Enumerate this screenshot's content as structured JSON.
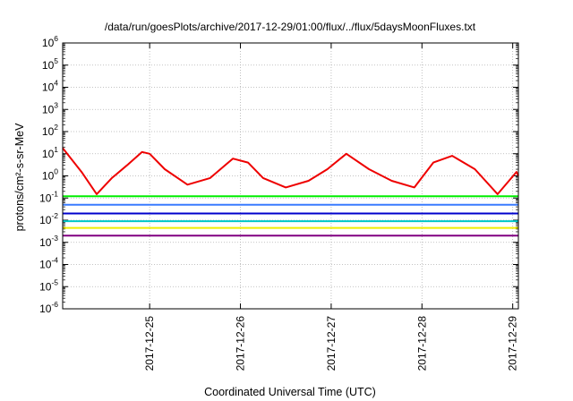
{
  "chart_data": {
    "type": "line",
    "title": "/data/run/goesPlots/archive/2017-12-29/01:00/flux/../flux/5daysMoonFluxes.txt",
    "xlabel": "Coordinated Universal Time (UTC)",
    "ylabel": "protons/cm²-s-sr-MeV",
    "yscale": "log",
    "ylim": [
      1e-06,
      1000000.0
    ],
    "xlim": [
      "2017-12-24 01:00",
      "2017-12-29 01:30"
    ],
    "grid": true,
    "legend": "none",
    "x_ticks": [
      "2017-12-25",
      "2017-12-26",
      "2017-12-27",
      "2017-12-28",
      "2017-12-29"
    ],
    "y_ticks": [
      {
        "base": "10",
        "exp": "-6"
      },
      {
        "base": "10",
        "exp": "-5"
      },
      {
        "base": "10",
        "exp": "-4"
      },
      {
        "base": "10",
        "exp": "-3"
      },
      {
        "base": "10",
        "exp": "-2"
      },
      {
        "base": "10",
        "exp": "-1"
      },
      {
        "base": "10",
        "exp": "0"
      },
      {
        "base": "10",
        "exp": "1"
      },
      {
        "base": "10",
        "exp": "2"
      },
      {
        "base": "10",
        "exp": "3"
      },
      {
        "base": "10",
        "exp": "4"
      },
      {
        "base": "10",
        "exp": "5"
      },
      {
        "base": "10",
        "exp": "6"
      }
    ],
    "series": [
      {
        "color": "#ee0000",
        "x": [
          "2017-12-24 01:00",
          "2017-12-24 06:00",
          "2017-12-24 10:00",
          "2017-12-24 14:00",
          "2017-12-24 18:00",
          "2017-12-24 22:00",
          "2017-12-25 00:00",
          "2017-12-25 04:00",
          "2017-12-25 10:00",
          "2017-12-25 16:00",
          "2017-12-25 22:00",
          "2017-12-26 02:00",
          "2017-12-26 06:00",
          "2017-12-26 12:00",
          "2017-12-26 18:00",
          "2017-12-26 23:00",
          "2017-12-27 04:00",
          "2017-12-27 10:00",
          "2017-12-27 16:00",
          "2017-12-27 22:00",
          "2017-12-28 03:00",
          "2017-12-28 08:00",
          "2017-12-28 14:00",
          "2017-12-28 20:00",
          "2017-12-29 01:00",
          "2017-12-29 01:30"
        ],
        "y": [
          18,
          1.5,
          0.15,
          0.8,
          3,
          12,
          10,
          2,
          0.4,
          0.8,
          6,
          4,
          0.8,
          0.3,
          0.6,
          2,
          10,
          2,
          0.6,
          0.3,
          4,
          8,
          2,
          0.15,
          1.5,
          1
        ]
      },
      {
        "color": "#00ee00",
        "x": [
          "2017-12-24 01:00",
          "2017-12-29 01:30"
        ],
        "y": [
          0.12,
          0.12
        ]
      },
      {
        "color": "#3a7bff",
        "x": [
          "2017-12-24 01:00",
          "2017-12-29 01:30"
        ],
        "y": [
          0.05,
          0.05
        ]
      },
      {
        "color": "#0000cc",
        "x": [
          "2017-12-24 01:00",
          "2017-12-29 01:30"
        ],
        "y": [
          0.02,
          0.02
        ]
      },
      {
        "color": "#00c8c8",
        "x": [
          "2017-12-24 01:00",
          "2017-12-29 01:30"
        ],
        "y": [
          0.009,
          0.009
        ]
      },
      {
        "color": "#eeee00",
        "x": [
          "2017-12-24 01:00",
          "2017-12-29 01:30"
        ],
        "y": [
          0.0045,
          0.0045
        ]
      },
      {
        "color": "#800080",
        "x": [
          "2017-12-24 01:00",
          "2017-12-29 01:30"
        ],
        "y": [
          0.002,
          0.002
        ]
      }
    ]
  }
}
